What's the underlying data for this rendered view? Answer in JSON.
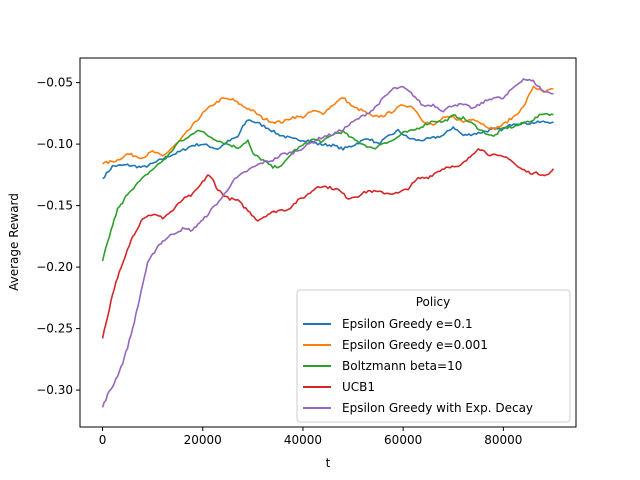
{
  "chart_data": {
    "type": "line",
    "title": "",
    "xlabel": "t",
    "ylabel": "Average Reward",
    "xlim": [
      -4500,
      94500
    ],
    "ylim": [
      -0.33,
      -0.03
    ],
    "x_ticks": [
      0,
      20000,
      40000,
      60000,
      80000
    ],
    "x_tick_labels": [
      "0",
      "20000",
      "40000",
      "60000",
      "80000"
    ],
    "y_ticks": [
      -0.3,
      -0.25,
      -0.2,
      -0.15,
      -0.1,
      -0.05
    ],
    "y_tick_labels": [
      "−0.30",
      "−0.25",
      "−0.20",
      "−0.15",
      "−0.10",
      "−0.05"
    ],
    "grid": false,
    "legend": {
      "title": "Policy",
      "placement": "lower-right"
    },
    "series": [
      {
        "name": "Epsilon Greedy e=0.1",
        "color": "#1f77b4",
        "points": [
          [
            0,
            -0.128
          ],
          [
            2000,
            -0.118
          ],
          [
            5000,
            -0.117
          ],
          [
            8000,
            -0.119
          ],
          [
            10000,
            -0.116
          ],
          [
            13000,
            -0.11
          ],
          [
            15000,
            -0.107
          ],
          [
            18000,
            -0.101
          ],
          [
            20000,
            -0.1
          ],
          [
            23000,
            -0.104
          ],
          [
            25000,
            -0.098
          ],
          [
            27000,
            -0.094
          ],
          [
            28000,
            -0.086
          ],
          [
            29000,
            -0.08
          ],
          [
            31000,
            -0.083
          ],
          [
            33000,
            -0.087
          ],
          [
            35000,
            -0.092
          ],
          [
            38000,
            -0.096
          ],
          [
            41000,
            -0.097
          ],
          [
            43000,
            -0.1
          ],
          [
            46000,
            -0.101
          ],
          [
            48000,
            -0.104
          ],
          [
            50000,
            -0.101
          ],
          [
            53000,
            -0.095
          ],
          [
            55000,
            -0.1
          ],
          [
            57000,
            -0.094
          ],
          [
            59000,
            -0.089
          ],
          [
            61000,
            -0.095
          ],
          [
            63000,
            -0.097
          ],
          [
            65000,
            -0.096
          ],
          [
            68000,
            -0.093
          ],
          [
            70000,
            -0.086
          ],
          [
            72000,
            -0.093
          ],
          [
            75000,
            -0.091
          ],
          [
            78000,
            -0.088
          ],
          [
            80000,
            -0.088
          ],
          [
            82000,
            -0.083
          ],
          [
            85000,
            -0.083
          ],
          [
            88000,
            -0.082
          ],
          [
            90000,
            -0.082
          ]
        ]
      },
      {
        "name": "Epsilon Greedy e=0.001",
        "color": "#ff7f0e",
        "points": [
          [
            0,
            -0.116
          ],
          [
            3000,
            -0.113
          ],
          [
            5000,
            -0.108
          ],
          [
            8000,
            -0.111
          ],
          [
            10000,
            -0.106
          ],
          [
            12000,
            -0.11
          ],
          [
            15000,
            -0.099
          ],
          [
            18000,
            -0.085
          ],
          [
            20000,
            -0.075
          ],
          [
            22000,
            -0.068
          ],
          [
            24000,
            -0.063
          ],
          [
            26000,
            -0.064
          ],
          [
            28000,
            -0.069
          ],
          [
            30000,
            -0.073
          ],
          [
            32000,
            -0.079
          ],
          [
            34000,
            -0.082
          ],
          [
            36000,
            -0.082
          ],
          [
            38000,
            -0.078
          ],
          [
            40000,
            -0.078
          ],
          [
            42000,
            -0.073
          ],
          [
            44000,
            -0.075
          ],
          [
            46000,
            -0.068
          ],
          [
            48000,
            -0.062
          ],
          [
            50000,
            -0.07
          ],
          [
            52000,
            -0.073
          ],
          [
            54000,
            -0.078
          ],
          [
            56000,
            -0.077
          ],
          [
            58000,
            -0.073
          ],
          [
            60000,
            -0.068
          ],
          [
            62000,
            -0.07
          ],
          [
            64000,
            -0.081
          ],
          [
            66000,
            -0.085
          ],
          [
            68000,
            -0.079
          ],
          [
            70000,
            -0.078
          ],
          [
            72000,
            -0.082
          ],
          [
            74000,
            -0.079
          ],
          [
            76000,
            -0.084
          ],
          [
            78000,
            -0.088
          ],
          [
            80000,
            -0.084
          ],
          [
            82000,
            -0.078
          ],
          [
            84000,
            -0.07
          ],
          [
            86000,
            -0.053
          ],
          [
            88000,
            -0.058
          ],
          [
            90000,
            -0.055
          ]
        ]
      },
      {
        "name": "Boltzmann beta=10",
        "color": "#2ca02c",
        "points": [
          [
            0,
            -0.195
          ],
          [
            1000,
            -0.18
          ],
          [
            2000,
            -0.166
          ],
          [
            3000,
            -0.153
          ],
          [
            4000,
            -0.148
          ],
          [
            5000,
            -0.14
          ],
          [
            7000,
            -0.132
          ],
          [
            9000,
            -0.124
          ],
          [
            11000,
            -0.117
          ],
          [
            13000,
            -0.11
          ],
          [
            15000,
            -0.099
          ],
          [
            17000,
            -0.095
          ],
          [
            19000,
            -0.088
          ],
          [
            21000,
            -0.093
          ],
          [
            23000,
            -0.097
          ],
          [
            25000,
            -0.1
          ],
          [
            27000,
            -0.103
          ],
          [
            29000,
            -0.097
          ],
          [
            30000,
            -0.108
          ],
          [
            32000,
            -0.113
          ],
          [
            34000,
            -0.119
          ],
          [
            36000,
            -0.117
          ],
          [
            38000,
            -0.106
          ],
          [
            40000,
            -0.101
          ],
          [
            42000,
            -0.096
          ],
          [
            44000,
            -0.098
          ],
          [
            46000,
            -0.092
          ],
          [
            48000,
            -0.09
          ],
          [
            50000,
            -0.096
          ],
          [
            52000,
            -0.1
          ],
          [
            54000,
            -0.104
          ],
          [
            56000,
            -0.099
          ],
          [
            58000,
            -0.097
          ],
          [
            60000,
            -0.091
          ],
          [
            62000,
            -0.089
          ],
          [
            64000,
            -0.085
          ],
          [
            66000,
            -0.081
          ],
          [
            68000,
            -0.082
          ],
          [
            70000,
            -0.077
          ],
          [
            72000,
            -0.079
          ],
          [
            74000,
            -0.084
          ],
          [
            76000,
            -0.09
          ],
          [
            78000,
            -0.094
          ],
          [
            80000,
            -0.087
          ],
          [
            82000,
            -0.086
          ],
          [
            84000,
            -0.083
          ],
          [
            86000,
            -0.08
          ],
          [
            88000,
            -0.075
          ],
          [
            90000,
            -0.076
          ]
        ]
      },
      {
        "name": "UCB1",
        "color": "#d62728",
        "points": [
          [
            0,
            -0.258
          ],
          [
            1000,
            -0.24
          ],
          [
            2000,
            -0.222
          ],
          [
            3000,
            -0.208
          ],
          [
            4000,
            -0.198
          ],
          [
            5000,
            -0.186
          ],
          [
            6000,
            -0.175
          ],
          [
            7000,
            -0.168
          ],
          [
            8000,
            -0.16
          ],
          [
            10000,
            -0.157
          ],
          [
            12000,
            -0.16
          ],
          [
            14000,
            -0.154
          ],
          [
            16000,
            -0.145
          ],
          [
            18000,
            -0.141
          ],
          [
            20000,
            -0.131
          ],
          [
            21000,
            -0.125
          ],
          [
            22000,
            -0.129
          ],
          [
            23000,
            -0.137
          ],
          [
            25000,
            -0.144
          ],
          [
            27000,
            -0.146
          ],
          [
            29000,
            -0.154
          ],
          [
            31000,
            -0.162
          ],
          [
            33000,
            -0.157
          ],
          [
            35000,
            -0.154
          ],
          [
            37000,
            -0.153
          ],
          [
            39000,
            -0.146
          ],
          [
            41000,
            -0.141
          ],
          [
            43000,
            -0.134
          ],
          [
            45000,
            -0.135
          ],
          [
            47000,
            -0.137
          ],
          [
            49000,
            -0.144
          ],
          [
            51000,
            -0.142
          ],
          [
            53000,
            -0.138
          ],
          [
            55000,
            -0.139
          ],
          [
            57000,
            -0.14
          ],
          [
            59000,
            -0.14
          ],
          [
            61000,
            -0.136
          ],
          [
            63000,
            -0.128
          ],
          [
            65000,
            -0.127
          ],
          [
            67000,
            -0.122
          ],
          [
            69000,
            -0.118
          ],
          [
            71000,
            -0.119
          ],
          [
            73000,
            -0.112
          ],
          [
            75000,
            -0.103
          ],
          [
            77000,
            -0.108
          ],
          [
            79000,
            -0.11
          ],
          [
            81000,
            -0.111
          ],
          [
            83000,
            -0.119
          ],
          [
            85000,
            -0.123
          ],
          [
            87000,
            -0.124
          ],
          [
            89000,
            -0.125
          ],
          [
            90000,
            -0.12
          ]
        ]
      },
      {
        "name": "Epsilon Greedy with Exp. Decay",
        "color": "#9467bd",
        "points": [
          [
            0,
            -0.314
          ],
          [
            1000,
            -0.304
          ],
          [
            2000,
            -0.297
          ],
          [
            3000,
            -0.288
          ],
          [
            4000,
            -0.278
          ],
          [
            5000,
            -0.265
          ],
          [
            6000,
            -0.25
          ],
          [
            7000,
            -0.233
          ],
          [
            8000,
            -0.214
          ],
          [
            9000,
            -0.197
          ],
          [
            10000,
            -0.19
          ],
          [
            11000,
            -0.183
          ],
          [
            12000,
            -0.179
          ],
          [
            14000,
            -0.173
          ],
          [
            16000,
            -0.169
          ],
          [
            18000,
            -0.17
          ],
          [
            19000,
            -0.165
          ],
          [
            20000,
            -0.162
          ],
          [
            22000,
            -0.152
          ],
          [
            24000,
            -0.143
          ],
          [
            26000,
            -0.13
          ],
          [
            28000,
            -0.124
          ],
          [
            30000,
            -0.119
          ],
          [
            32000,
            -0.115
          ],
          [
            34000,
            -0.113
          ],
          [
            36000,
            -0.108
          ],
          [
            38000,
            -0.107
          ],
          [
            40000,
            -0.103
          ],
          [
            42000,
            -0.098
          ],
          [
            44000,
            -0.094
          ],
          [
            46000,
            -0.092
          ],
          [
            48000,
            -0.088
          ],
          [
            50000,
            -0.082
          ],
          [
            52000,
            -0.077
          ],
          [
            54000,
            -0.072
          ],
          [
            56000,
            -0.063
          ],
          [
            58000,
            -0.055
          ],
          [
            60000,
            -0.054
          ],
          [
            62000,
            -0.06
          ],
          [
            64000,
            -0.069
          ],
          [
            66000,
            -0.068
          ],
          [
            68000,
            -0.073
          ],
          [
            70000,
            -0.068
          ],
          [
            72000,
            -0.068
          ],
          [
            74000,
            -0.071
          ],
          [
            76000,
            -0.066
          ],
          [
            78000,
            -0.062
          ],
          [
            80000,
            -0.063
          ],
          [
            82000,
            -0.054
          ],
          [
            84000,
            -0.047
          ],
          [
            86000,
            -0.049
          ],
          [
            88000,
            -0.057
          ],
          [
            90000,
            -0.059
          ]
        ]
      }
    ]
  }
}
